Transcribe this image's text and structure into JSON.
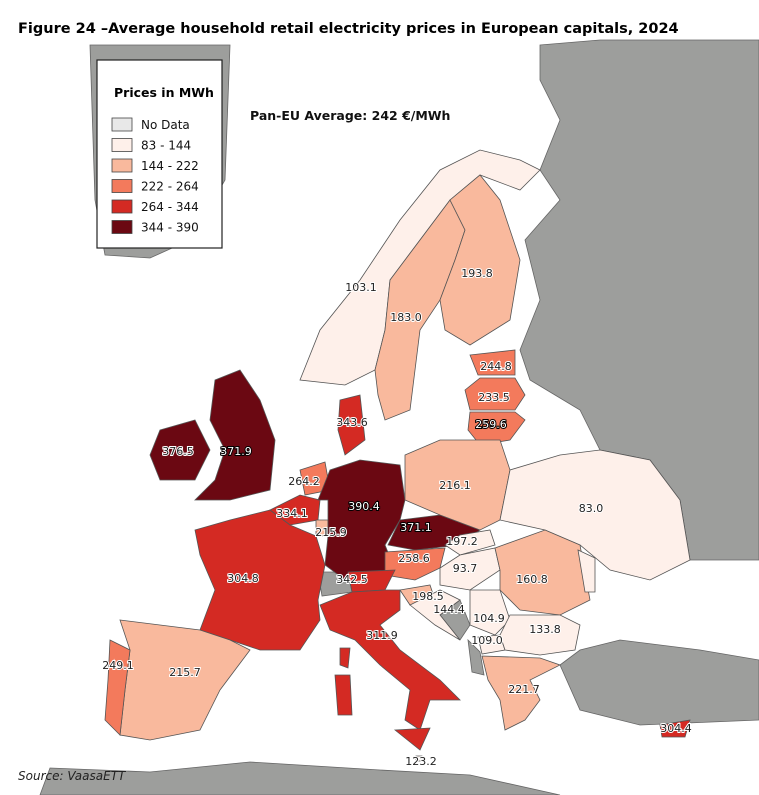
{
  "title": "Figure 24 –Average household retail electricity prices in European capitals, 2024",
  "annotation": "Pan-EU Average: 242 €/MWh",
  "legend": {
    "title": "Prices in MWh",
    "items": [
      {
        "label": "No Data",
        "color": "#e8e8e8"
      },
      {
        "label": "83 - 144",
        "color": "#fef0ea"
      },
      {
        "label": "144 - 222",
        "color": "#f9b99d"
      },
      {
        "label": "222 - 264",
        "color": "#f37a5c"
      },
      {
        "label": "264 - 344",
        "color": "#d42a23"
      },
      {
        "label": "344 - 390",
        "color": "#6b0812"
      }
    ]
  },
  "labels": [
    "103.1",
    "183.0",
    "193.8",
    "244.8",
    "233.5",
    "259.6",
    "343.6",
    "376.5",
    "371.9",
    "264.2",
    "334.1",
    "215.9",
    "390.4",
    "371.1",
    "216.1",
    "83.0",
    "197.2",
    "258.6",
    "93.7",
    "160.8",
    "304.8",
    "342.5",
    "198.5",
    "144.4",
    "104.9",
    "109.0",
    "133.8",
    "311.9",
    "249.1",
    "215.7",
    "221.7",
    "304.4",
    "123.2"
  ],
  "source": "Source: VaasaETT"
}
